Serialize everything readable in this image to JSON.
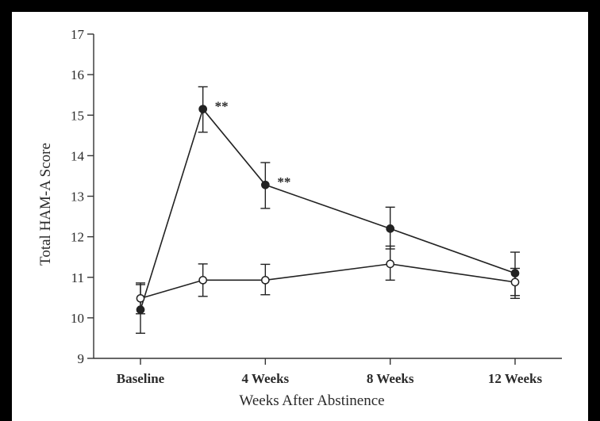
{
  "chart_data": {
    "type": "line",
    "title": "",
    "xlabel": "Weeks After Abstinence",
    "ylabel": "Total HAM-A Score",
    "ylim": [
      9,
      17
    ],
    "yticks": [
      9,
      10,
      11,
      12,
      13,
      14,
      15,
      16,
      17
    ],
    "x_tick_labels": [
      {
        "x": 0,
        "label": "Baseline"
      },
      {
        "x": 4,
        "label": "4 Weeks"
      },
      {
        "x": 8,
        "label": "8 Weeks"
      },
      {
        "x": 12,
        "label": "12 Weeks"
      }
    ],
    "xlim": [
      -1.5,
      13.5
    ],
    "grid": false,
    "legend": "none",
    "series": [
      {
        "marker": "filled-circle",
        "color": "#222222",
        "points": [
          {
            "x": 0,
            "y": 10.2,
            "err_low": 9.62,
            "err_high": 10.82
          },
          {
            "x": 2,
            "y": 15.15,
            "err_low": 14.58,
            "err_high": 15.7
          },
          {
            "x": 4,
            "y": 13.28,
            "err_low": 12.7,
            "err_high": 13.83
          },
          {
            "x": 8,
            "y": 12.2,
            "err_low": 11.7,
            "err_high": 12.73
          },
          {
            "x": 12,
            "y": 11.1,
            "err_low": 10.55,
            "err_high": 11.62
          }
        ]
      },
      {
        "marker": "open-circle",
        "color": "#222222",
        "points": [
          {
            "x": 0,
            "y": 10.48,
            "err_low": 10.1,
            "err_high": 10.86
          },
          {
            "x": 2,
            "y": 10.93,
            "err_low": 10.53,
            "err_high": 11.33
          },
          {
            "x": 4,
            "y": 10.93,
            "err_low": 10.57,
            "err_high": 11.32
          },
          {
            "x": 8,
            "y": 11.33,
            "err_low": 10.93,
            "err_high": 11.77
          },
          {
            "x": 12,
            "y": 10.88,
            "err_low": 10.48,
            "err_high": 11.22
          }
        ]
      }
    ],
    "annotations": [
      {
        "text": "**",
        "x": 2,
        "y": 15.15
      },
      {
        "text": "**",
        "x": 4,
        "y": 13.28
      }
    ]
  }
}
